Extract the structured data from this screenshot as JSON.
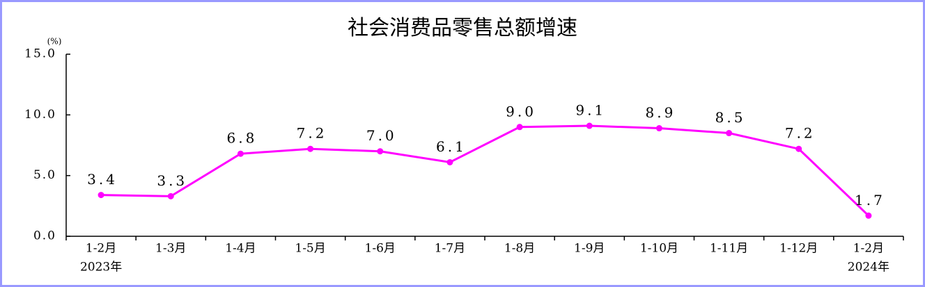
{
  "chart_data": {
    "type": "line",
    "title": "社会消费品零售总额增速",
    "y_unit": "(%)",
    "categories": [
      "1-2月",
      "1-3月",
      "1-4月",
      "1-5月",
      "1-6月",
      "1-7月",
      "1-8月",
      "1-9月",
      "1-10月",
      "1-11月",
      "1-12月",
      "1-2月"
    ],
    "category_years": [
      "2023年",
      null,
      null,
      null,
      null,
      null,
      null,
      null,
      null,
      null,
      null,
      "2024年"
    ],
    "values": [
      3.4,
      3.3,
      6.8,
      7.2,
      7.0,
      6.1,
      9.0,
      9.1,
      8.9,
      8.5,
      7.2,
      1.7
    ],
    "value_labels": [
      "3.4",
      "3.3",
      "6.8",
      "7.2",
      "7.0",
      "6.1",
      "9.0",
      "9.1",
      "8.9",
      "8.5",
      "7.2",
      "1.7"
    ],
    "color": "#ff00ff",
    "ylim": [
      0,
      15
    ],
    "yticks": [
      {
        "value": 0,
        "label": "0.0"
      },
      {
        "value": 5,
        "label": "5.0"
      },
      {
        "value": 10,
        "label": "10.0"
      },
      {
        "value": 15,
        "label": "15.0"
      }
    ]
  }
}
